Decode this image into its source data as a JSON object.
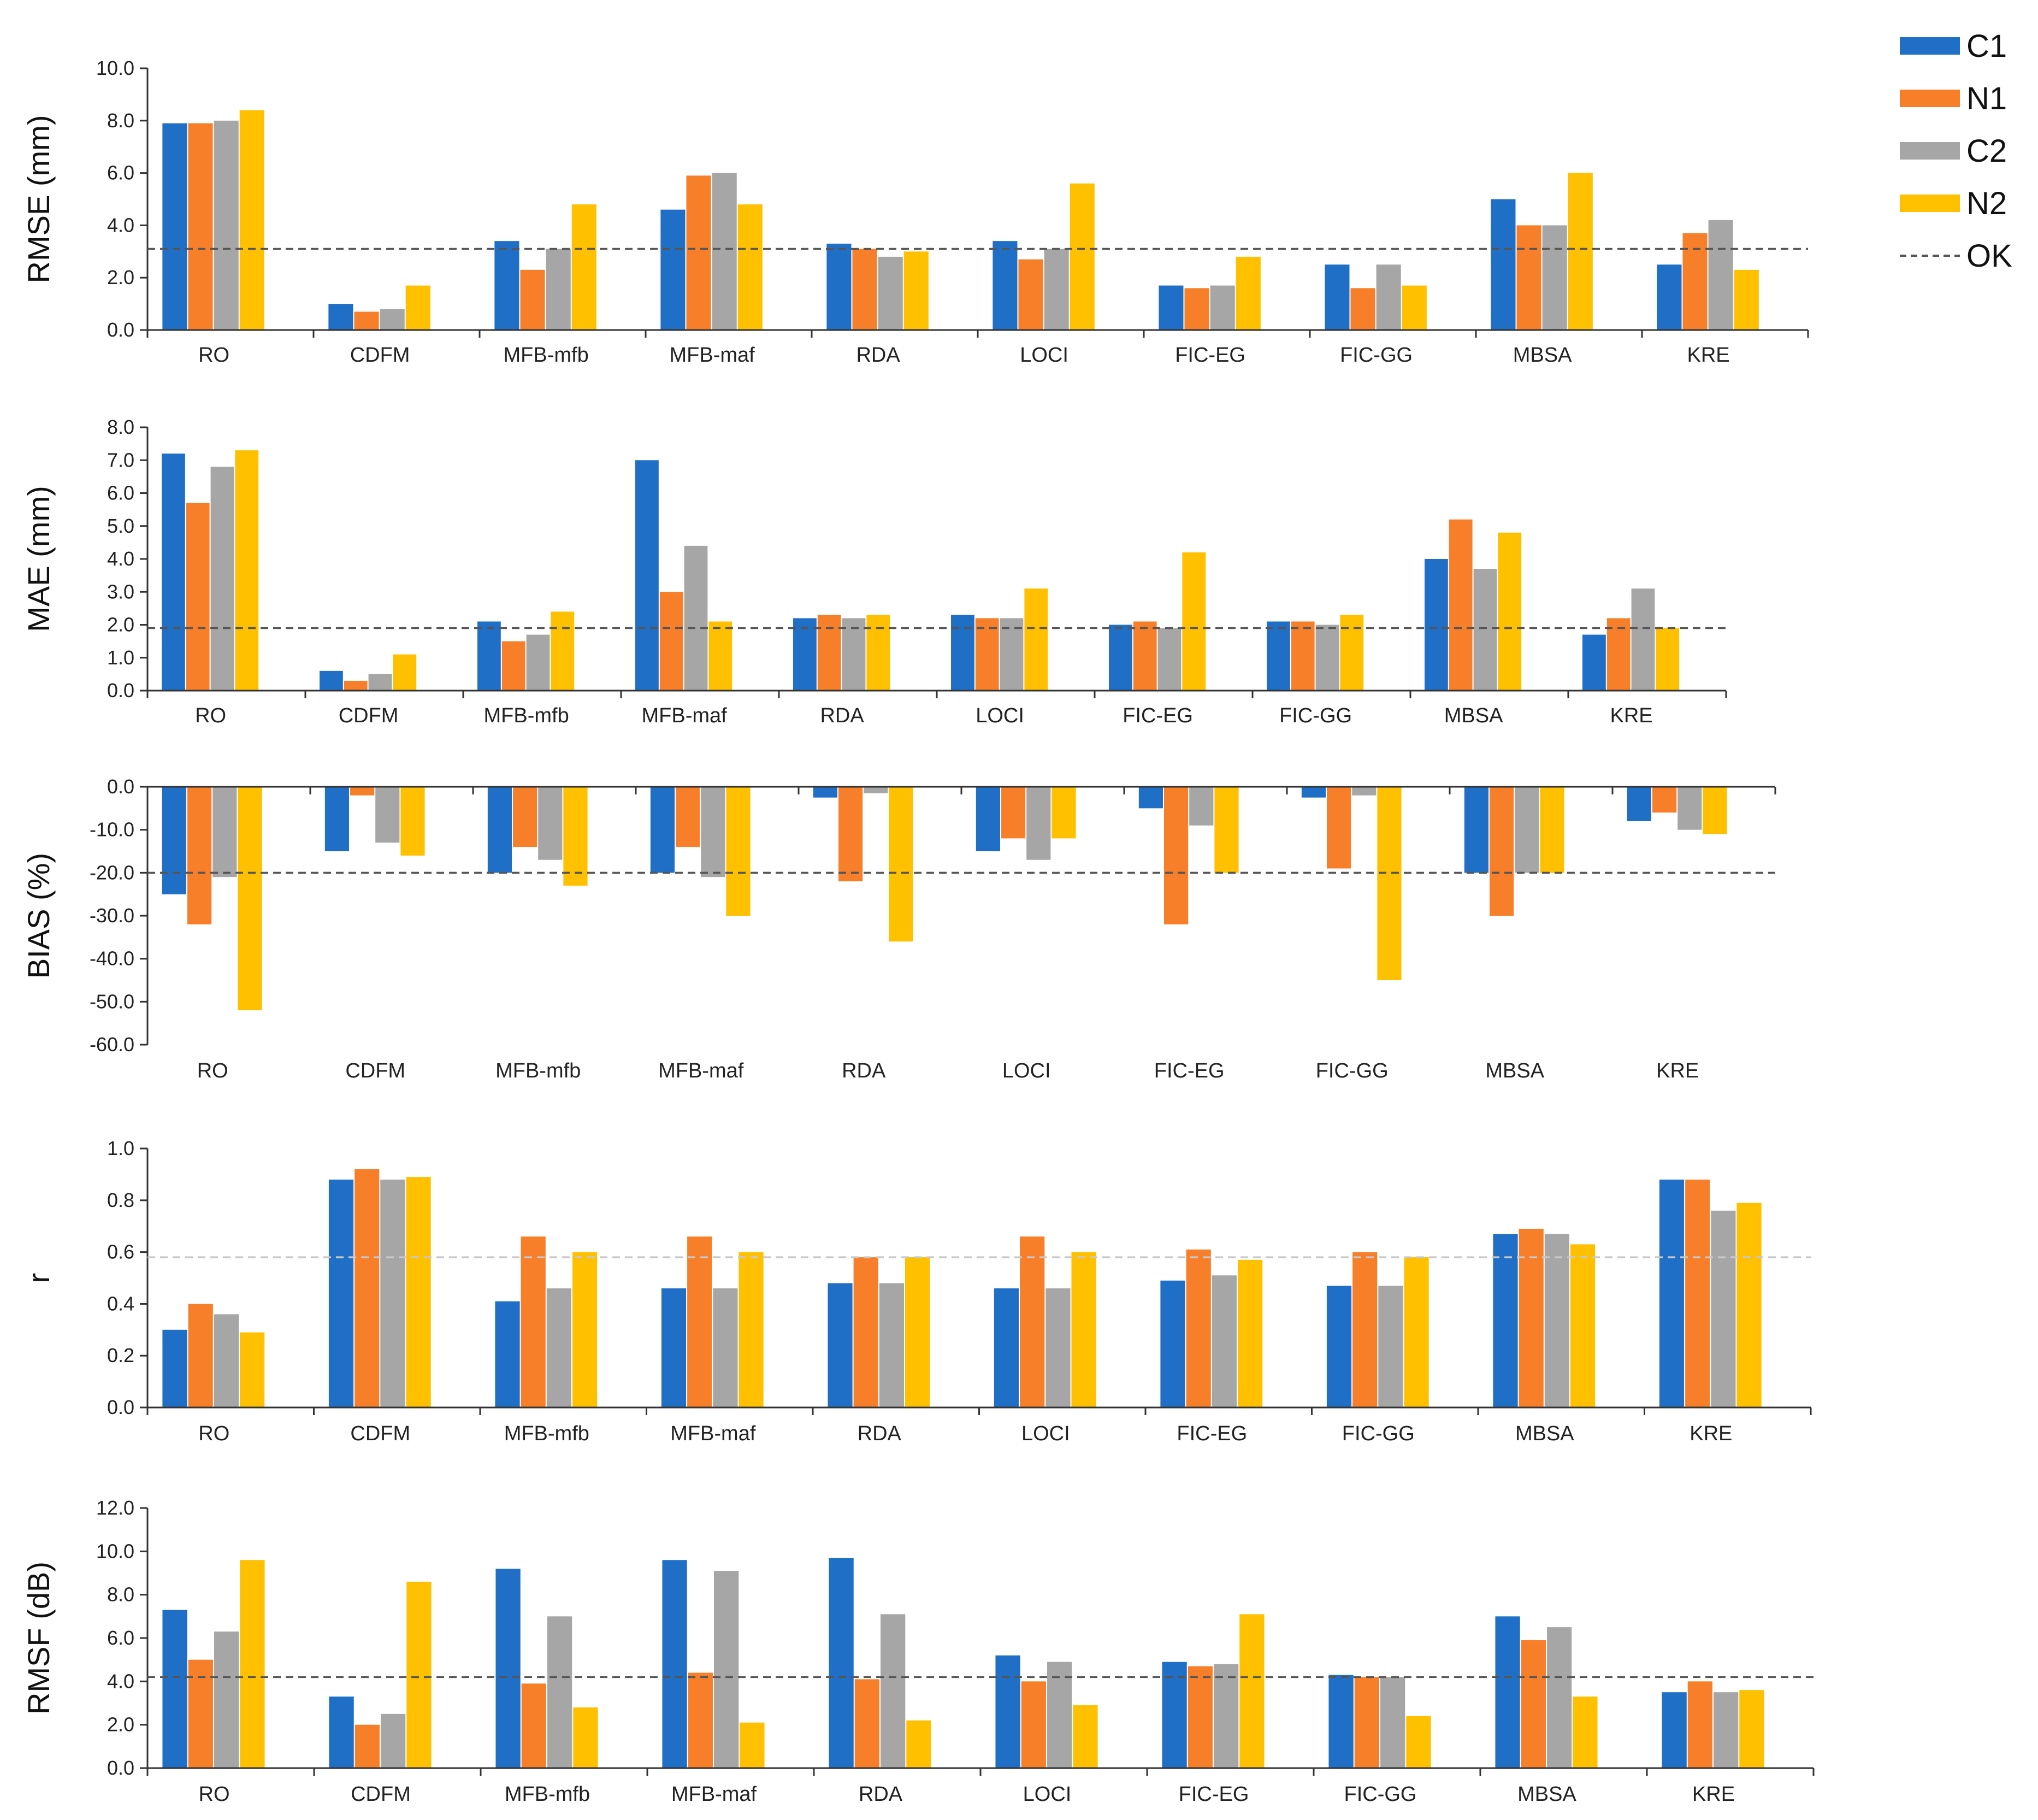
{
  "colors": {
    "C1": "#1f6fc6",
    "N1": "#f77f29",
    "C2": "#a6a6a6",
    "N2": "#ffc000",
    "OK_rmse": "#555555",
    "OK_r": "#c8c8c8"
  },
  "legend": {
    "entries": [
      "C1",
      "N1",
      "C2",
      "N2"
    ],
    "ok_label": "OK"
  },
  "chart_data": [
    {
      "type": "bar",
      "ylabel": "RMSE (mm)",
      "ylim": [
        0,
        10
      ],
      "yticks": [
        "0.0",
        "2.0",
        "4.0",
        "6.0",
        "8.0",
        "10.0"
      ],
      "categories": [
        "RO",
        "CDFM",
        "MFB-mfb",
        "MFB-maf",
        "RDA",
        "LOCI",
        "FIC-EG",
        "FIC-GG",
        "MBSA",
        "KRE"
      ],
      "series": [
        {
          "name": "C1",
          "values": [
            7.9,
            1.0,
            3.4,
            4.6,
            3.3,
            3.4,
            1.7,
            2.5,
            5.0,
            2.5
          ]
        },
        {
          "name": "N1",
          "values": [
            7.9,
            0.7,
            2.3,
            5.9,
            3.1,
            2.7,
            1.6,
            1.6,
            4.0,
            3.7
          ]
        },
        {
          "name": "C2",
          "values": [
            8.0,
            0.8,
            3.1,
            6.0,
            2.8,
            3.1,
            1.7,
            2.5,
            4.0,
            4.2
          ]
        },
        {
          "name": "N2",
          "values": [
            8.4,
            1.7,
            4.8,
            4.8,
            3.0,
            5.6,
            2.8,
            1.7,
            6.0,
            2.3
          ]
        }
      ],
      "reference_line": {
        "name": "OK",
        "value": 3.1
      }
    },
    {
      "type": "bar",
      "ylabel": "MAE (mm)",
      "ylim": [
        0,
        8
      ],
      "yticks": [
        "0.0",
        "1.0",
        "2.0",
        "3.0",
        "4.0",
        "5.0",
        "6.0",
        "7.0",
        "8.0"
      ],
      "categories": [
        "RO",
        "CDFM",
        "MFB-mfb",
        "MFB-maf",
        "RDA",
        "LOCI",
        "FIC-EG",
        "FIC-GG",
        "MBSA",
        "KRE"
      ],
      "series": [
        {
          "name": "C1",
          "values": [
            7.2,
            0.6,
            2.1,
            7.0,
            2.2,
            2.3,
            2.0,
            2.1,
            4.0,
            1.7
          ]
        },
        {
          "name": "N1",
          "values": [
            5.7,
            0.3,
            1.5,
            3.0,
            2.3,
            2.2,
            2.1,
            2.1,
            5.2,
            2.2
          ]
        },
        {
          "name": "C2",
          "values": [
            6.8,
            0.5,
            1.7,
            4.4,
            2.2,
            2.2,
            1.9,
            2.0,
            3.7,
            3.1
          ]
        },
        {
          "name": "N2",
          "values": [
            7.3,
            1.1,
            2.4,
            2.1,
            2.3,
            3.1,
            4.2,
            2.3,
            4.8,
            1.9
          ]
        }
      ],
      "reference_line": {
        "name": "OK",
        "value": 1.9
      }
    },
    {
      "type": "bar",
      "ylabel": "BIAS (%)",
      "ylim": [
        -60,
        0
      ],
      "yticks": [
        "-60.0",
        "-50.0",
        "-40.0",
        "-30.0",
        "-20.0",
        "-10.0",
        "0.0"
      ],
      "categories": [
        "RO",
        "CDFM",
        "MFB-mfb",
        "MFB-maf",
        "RDA",
        "LOCI",
        "FIC-EG",
        "FIC-GG",
        "MBSA",
        "KRE"
      ],
      "series": [
        {
          "name": "C1",
          "values": [
            -25,
            -15,
            -20,
            -20,
            -2.5,
            -15,
            -5,
            -2.5,
            -20,
            -8
          ]
        },
        {
          "name": "N1",
          "values": [
            -32,
            -2,
            -14,
            -14,
            -22,
            -12,
            -32,
            -19,
            -30,
            -6
          ]
        },
        {
          "name": "C2",
          "values": [
            -21,
            -13,
            -17,
            -21,
            -1.5,
            -17,
            -9,
            -2,
            -20,
            -10
          ]
        },
        {
          "name": "N2",
          "values": [
            -52,
            -16,
            -23,
            -30,
            -36,
            -12,
            -20,
            -45,
            -20,
            -11
          ]
        }
      ],
      "reference_line": {
        "name": "OK",
        "value": -20
      }
    },
    {
      "type": "bar",
      "ylabel": "r",
      "ylim": [
        0,
        1
      ],
      "yticks": [
        "0.0",
        "0.2",
        "0.4",
        "0.6",
        "0.8",
        "1.0"
      ],
      "categories": [
        "RO",
        "CDFM",
        "MFB-mfb",
        "MFB-maf",
        "RDA",
        "LOCI",
        "FIC-EG",
        "FIC-GG",
        "MBSA",
        "KRE"
      ],
      "series": [
        {
          "name": "C1",
          "values": [
            0.3,
            0.88,
            0.41,
            0.46,
            0.48,
            0.46,
            0.49,
            0.47,
            0.67,
            0.88
          ]
        },
        {
          "name": "N1",
          "values": [
            0.4,
            0.92,
            0.66,
            0.66,
            0.58,
            0.66,
            0.61,
            0.6,
            0.69,
            0.88
          ]
        },
        {
          "name": "C2",
          "values": [
            0.36,
            0.88,
            0.46,
            0.46,
            0.48,
            0.46,
            0.51,
            0.47,
            0.67,
            0.76
          ]
        },
        {
          "name": "N2",
          "values": [
            0.29,
            0.89,
            0.6,
            0.6,
            0.58,
            0.6,
            0.57,
            0.58,
            0.63,
            0.79
          ]
        }
      ],
      "reference_line": {
        "name": "OK",
        "value": 0.58
      }
    },
    {
      "type": "bar",
      "ylabel": "RMSF (dB)",
      "ylim": [
        0,
        12
      ],
      "yticks": [
        "0.0",
        "2.0",
        "4.0",
        "6.0",
        "8.0",
        "10.0",
        "12.0"
      ],
      "categories": [
        "RO",
        "CDFM",
        "MFB-mfb",
        "MFB-maf",
        "RDA",
        "LOCI",
        "FIC-EG",
        "FIC-GG",
        "MBSA",
        "KRE"
      ],
      "series": [
        {
          "name": "C1",
          "values": [
            7.3,
            3.3,
            9.2,
            9.6,
            9.7,
            5.2,
            4.9,
            4.3,
            7.0,
            3.5
          ]
        },
        {
          "name": "N1",
          "values": [
            5.0,
            2.0,
            3.9,
            4.4,
            4.1,
            4.0,
            4.7,
            4.2,
            5.9,
            4.0
          ]
        },
        {
          "name": "C2",
          "values": [
            6.3,
            2.5,
            7.0,
            9.1,
            7.1,
            4.9,
            4.8,
            4.2,
            6.5,
            3.5
          ]
        },
        {
          "name": "N2",
          "values": [
            9.6,
            8.6,
            2.8,
            2.1,
            2.2,
            2.9,
            7.1,
            2.4,
            3.3,
            3.6
          ]
        }
      ],
      "reference_line": {
        "name": "OK",
        "value": 4.2
      }
    }
  ]
}
